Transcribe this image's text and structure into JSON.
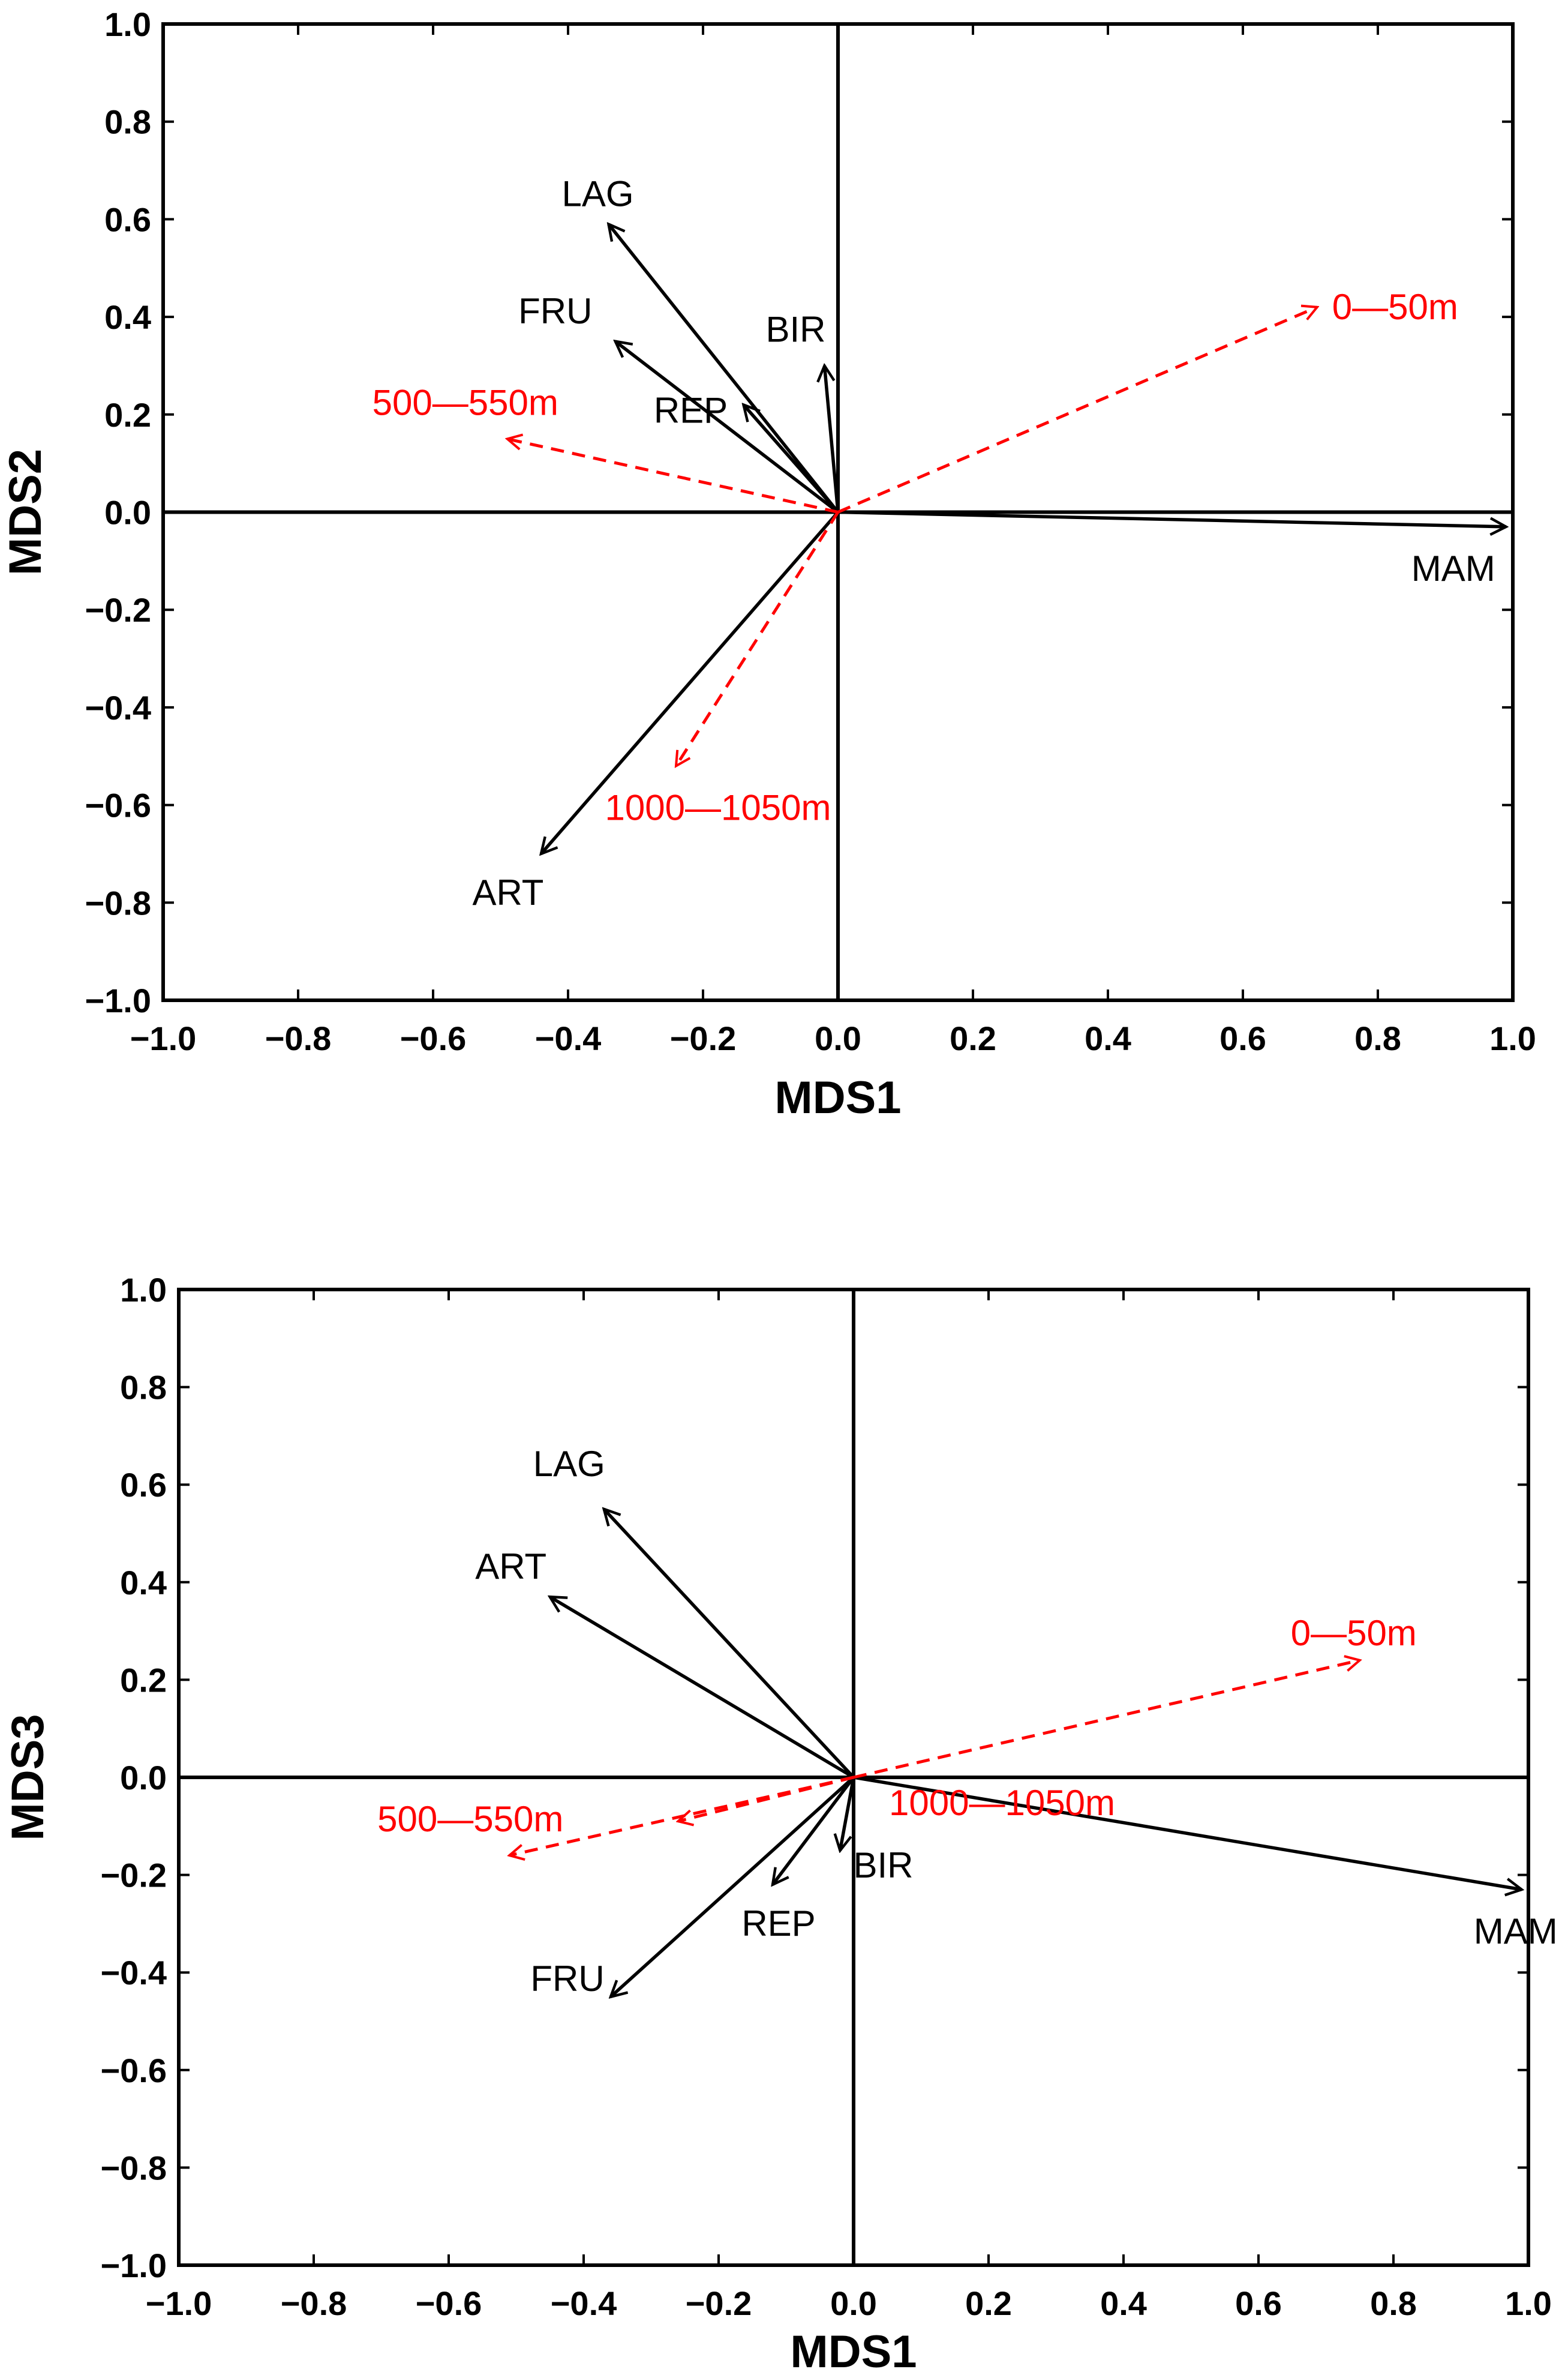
{
  "chart_data": [
    {
      "type": "biplot",
      "title": "",
      "xlabel": "MDS1",
      "ylabel": "MDS2",
      "xlim": [
        -1.0,
        1.0
      ],
      "ylim": [
        -1.0,
        1.0
      ],
      "xticks": [
        "−1.0",
        "−0.8",
        "−0.6",
        "−0.4",
        "−0.2",
        "0.0",
        "0.2",
        "0.4",
        "0.6",
        "0.8",
        "1.0"
      ],
      "yticks": [
        "−1.0",
        "−0.8",
        "−0.6",
        "−0.4",
        "−0.2",
        "0.0",
        "0.2",
        "0.4",
        "0.6",
        "0.8",
        "1.0"
      ],
      "grid": false,
      "vectors": [
        {
          "name": "LAG",
          "x": -0.34,
          "y": 0.59,
          "style": "solid",
          "color": "#000000"
        },
        {
          "name": "FRU",
          "x": -0.33,
          "y": 0.35,
          "style": "solid",
          "color": "#000000"
        },
        {
          "name": "REP",
          "x": -0.14,
          "y": 0.22,
          "style": "solid",
          "color": "#000000"
        },
        {
          "name": "BIR",
          "x": -0.02,
          "y": 0.3,
          "style": "solid",
          "color": "#000000"
        },
        {
          "name": "MAM",
          "x": 0.99,
          "y": -0.03,
          "style": "solid",
          "color": "#000000"
        },
        {
          "name": "ART",
          "x": -0.44,
          "y": -0.7,
          "style": "solid",
          "color": "#000000"
        },
        {
          "name": "0—50m",
          "x": 0.71,
          "y": 0.42,
          "style": "dashed",
          "color": "#ff0000"
        },
        {
          "name": "500—550m",
          "x": -0.49,
          "y": 0.15,
          "style": "dashed",
          "color": "#ff0000"
        },
        {
          "name": "1000—1050m",
          "x": -0.24,
          "y": -0.52,
          "style": "dashed",
          "color": "#ff0000"
        }
      ]
    },
    {
      "type": "biplot",
      "title": "",
      "xlabel": "MDS1",
      "ylabel": "MDS3",
      "xlim": [
        -1.0,
        1.0
      ],
      "ylim": [
        -1.0,
        1.0
      ],
      "xticks": [
        "−1.0",
        "−0.8",
        "−0.6",
        "−0.4",
        "−0.2",
        "0.0",
        "0.2",
        "0.4",
        "0.6",
        "0.8",
        "1.0"
      ],
      "yticks": [
        "−1.0",
        "−0.8",
        "−0.6",
        "−0.4",
        "−0.2",
        "0.0",
        "0.2",
        "0.4",
        "0.6",
        "0.8",
        "1.0"
      ],
      "grid": false,
      "vectors": [
        {
          "name": "LAG",
          "x": -0.37,
          "y": 0.55,
          "style": "solid",
          "color": "#000000"
        },
        {
          "name": "ART",
          "x": -0.45,
          "y": 0.37,
          "style": "solid",
          "color": "#000000"
        },
        {
          "name": "FRU",
          "x": -0.36,
          "y": -0.45,
          "style": "solid",
          "color": "#000000"
        },
        {
          "name": "REP",
          "x": -0.12,
          "y": -0.22,
          "style": "solid",
          "color": "#000000"
        },
        {
          "name": "BIR",
          "x": -0.02,
          "y": -0.15,
          "style": "solid",
          "color": "#000000"
        },
        {
          "name": "MAM",
          "x": 0.99,
          "y": -0.23,
          "style": "solid",
          "color": "#000000"
        },
        {
          "name": "0—50m",
          "x": 0.75,
          "y": 0.24,
          "style": "dashed",
          "color": "#ff0000"
        },
        {
          "name": "500—550m",
          "x": -0.51,
          "y": -0.16,
          "style": "dashed",
          "color": "#ff0000"
        },
        {
          "name": "1000—1050m",
          "x": -0.26,
          "y": -0.09,
          "style": "dashed",
          "color": "#ff0000"
        }
      ]
    }
  ]
}
